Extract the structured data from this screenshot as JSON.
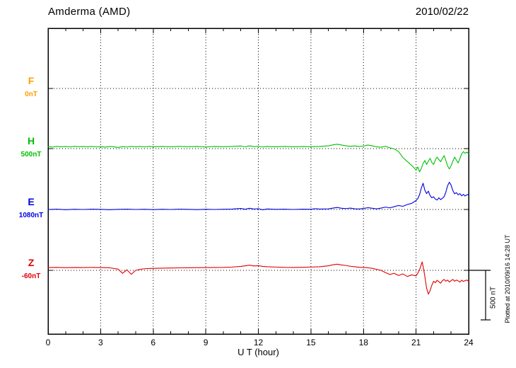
{
  "chart_data": {
    "type": "line",
    "title": "Amderma (AMD)",
    "date": "2010/02/22",
    "xlabel": "U T (hour)",
    "x_unit": "hour",
    "x_range": [
      0,
      24
    ],
    "x_ticks": [
      0,
      3,
      6,
      9,
      12,
      15,
      18,
      21,
      24
    ],
    "x_minor_tick_step_hours": 1,
    "grid": "dotted vertical lines every 3 hours; dotted horizontal line at each component baseline",
    "legend_position": "left margin (component letter above its baseline value)",
    "unit": "nT",
    "scale_bar": {
      "label": "500 nT",
      "nT": 500
    },
    "footnote": "Plotted at 2010/09/16 14:28 UT",
    "series": [
      {
        "name": "F",
        "baseline_label": "0nT",
        "color": "#FFA000",
        "points": []
      },
      {
        "name": "H",
        "baseline_label": "500nT",
        "color": "#00C000",
        "points": [
          [
            0,
            20
          ],
          [
            0.25,
            16
          ],
          [
            0.5,
            22
          ],
          [
            0.75,
            18
          ],
          [
            1,
            21
          ],
          [
            1.25,
            17
          ],
          [
            1.5,
            23
          ],
          [
            1.75,
            19
          ],
          [
            2,
            21
          ],
          [
            2.25,
            18
          ],
          [
            2.5,
            22
          ],
          [
            2.75,
            17
          ],
          [
            3,
            20
          ],
          [
            3.25,
            15
          ],
          [
            3.5,
            21
          ],
          [
            3.75,
            18
          ],
          [
            4,
            12
          ],
          [
            4.25,
            20
          ],
          [
            4.5,
            16
          ],
          [
            4.75,
            22
          ],
          [
            5,
            18
          ],
          [
            5.25,
            21
          ],
          [
            5.5,
            17
          ],
          [
            5.75,
            22
          ],
          [
            6,
            19
          ],
          [
            6.5,
            21
          ],
          [
            7,
            18
          ],
          [
            7.5,
            22
          ],
          [
            8,
            19
          ],
          [
            8.5,
            21
          ],
          [
            9,
            17
          ],
          [
            9.5,
            21
          ],
          [
            10,
            19
          ],
          [
            10.5,
            22
          ],
          [
            11,
            26
          ],
          [
            11.25,
            18
          ],
          [
            11.5,
            28
          ],
          [
            11.75,
            20
          ],
          [
            12,
            24
          ],
          [
            12.25,
            17
          ],
          [
            12.5,
            21
          ],
          [
            13,
            18
          ],
          [
            13.5,
            22
          ],
          [
            14,
            18
          ],
          [
            14.5,
            21
          ],
          [
            15,
            19
          ],
          [
            15.5,
            22
          ],
          [
            16,
            28
          ],
          [
            16.25,
            38
          ],
          [
            16.5,
            44
          ],
          [
            16.75,
            36
          ],
          [
            17,
            28
          ],
          [
            17.25,
            24
          ],
          [
            17.5,
            27
          ],
          [
            17.75,
            21
          ],
          [
            18,
            26
          ],
          [
            18.25,
            36
          ],
          [
            18.5,
            28
          ],
          [
            18.75,
            18
          ],
          [
            19,
            14
          ],
          [
            19.25,
            24
          ],
          [
            19.5,
            8
          ],
          [
            19.75,
            -2
          ],
          [
            20,
            -30
          ],
          [
            20.25,
            -90
          ],
          [
            20.5,
            -130
          ],
          [
            20.75,
            -170
          ],
          [
            21,
            -215
          ],
          [
            21.1,
            -185
          ],
          [
            21.2,
            -235
          ],
          [
            21.3,
            -200
          ],
          [
            21.4,
            -150
          ],
          [
            21.5,
            -120
          ],
          [
            21.6,
            -160
          ],
          [
            21.7,
            -128
          ],
          [
            21.8,
            -98
          ],
          [
            21.9,
            -140
          ],
          [
            22,
            -160
          ],
          [
            22.1,
            -115
          ],
          [
            22.2,
            -85
          ],
          [
            22.3,
            -110
          ],
          [
            22.4,
            -132
          ],
          [
            22.5,
            -100
          ],
          [
            22.6,
            -70
          ],
          [
            22.7,
            -120
          ],
          [
            22.8,
            -175
          ],
          [
            22.9,
            -205
          ],
          [
            23,
            -172
          ],
          [
            23.1,
            -128
          ],
          [
            23.2,
            -85
          ],
          [
            23.3,
            -115
          ],
          [
            23.4,
            -145
          ],
          [
            23.5,
            -100
          ],
          [
            23.6,
            -55
          ],
          [
            23.7,
            -30
          ],
          [
            23.8,
            -48
          ],
          [
            23.9,
            -35
          ],
          [
            24,
            -52
          ]
        ]
      },
      {
        "name": "E",
        "baseline_label": "1080nT",
        "color": "#0000E0",
        "points": [
          [
            0,
            0
          ],
          [
            0.5,
            3
          ],
          [
            1,
            -2
          ],
          [
            1.5,
            2
          ],
          [
            2,
            0
          ],
          [
            2.5,
            3
          ],
          [
            3,
            1
          ],
          [
            3.5,
            -2
          ],
          [
            4,
            1
          ],
          [
            4.5,
            3
          ],
          [
            5,
            0
          ],
          [
            5.5,
            2
          ],
          [
            6,
            -1
          ],
          [
            6.5,
            2
          ],
          [
            7,
            0
          ],
          [
            7.5,
            3
          ],
          [
            8,
            1
          ],
          [
            8.5,
            -1
          ],
          [
            9,
            2
          ],
          [
            9.5,
            0
          ],
          [
            10,
            2
          ],
          [
            10.5,
            4
          ],
          [
            11,
            10
          ],
          [
            11.25,
            2
          ],
          [
            11.5,
            12
          ],
          [
            11.75,
            4
          ],
          [
            12,
            8
          ],
          [
            12.25,
            -3
          ],
          [
            12.5,
            5
          ],
          [
            13,
            1
          ],
          [
            13.5,
            3
          ],
          [
            14,
            0
          ],
          [
            14.5,
            3
          ],
          [
            15,
            2
          ],
          [
            15.25,
            8
          ],
          [
            15.5,
            4
          ],
          [
            16,
            6
          ],
          [
            16.25,
            14
          ],
          [
            16.5,
            20
          ],
          [
            16.75,
            12
          ],
          [
            17,
            9
          ],
          [
            17.25,
            14
          ],
          [
            17.5,
            7
          ],
          [
            17.75,
            5
          ],
          [
            18,
            10
          ],
          [
            18.25,
            18
          ],
          [
            18.5,
            12
          ],
          [
            18.75,
            6
          ],
          [
            19,
            14
          ],
          [
            19.25,
            24
          ],
          [
            19.5,
            16
          ],
          [
            19.75,
            28
          ],
          [
            20,
            40
          ],
          [
            20.25,
            32
          ],
          [
            20.5,
            50
          ],
          [
            20.75,
            62
          ],
          [
            21,
            90
          ],
          [
            21.1,
            110
          ],
          [
            21.2,
            150
          ],
          [
            21.3,
            215
          ],
          [
            21.4,
            265
          ],
          [
            21.5,
            195
          ],
          [
            21.6,
            160
          ],
          [
            21.7,
            185
          ],
          [
            21.8,
            140
          ],
          [
            21.9,
            118
          ],
          [
            22,
            128
          ],
          [
            22.1,
            105
          ],
          [
            22.2,
            95
          ],
          [
            22.3,
            118
          ],
          [
            22.4,
            100
          ],
          [
            22.5,
            112
          ],
          [
            22.6,
            130
          ],
          [
            22.7,
            175
          ],
          [
            22.8,
            240
          ],
          [
            22.9,
            275
          ],
          [
            23,
            245
          ],
          [
            23.1,
            190
          ],
          [
            23.2,
            158
          ],
          [
            23.3,
            170
          ],
          [
            23.4,
            148
          ],
          [
            23.5,
            160
          ],
          [
            23.6,
            138
          ],
          [
            23.7,
            152
          ],
          [
            23.8,
            136
          ],
          [
            23.9,
            148
          ],
          [
            24,
            152
          ]
        ]
      },
      {
        "name": "Z",
        "baseline_label": "-60nT",
        "color": "#E00000",
        "points": [
          [
            0,
            28
          ],
          [
            0.5,
            30
          ],
          [
            1,
            27
          ],
          [
            1.5,
            29
          ],
          [
            2,
            28
          ],
          [
            2.5,
            30
          ],
          [
            3,
            28
          ],
          [
            3.5,
            26
          ],
          [
            4,
            12
          ],
          [
            4.25,
            -30
          ],
          [
            4.5,
            5
          ],
          [
            4.75,
            -40
          ],
          [
            5,
            0
          ],
          [
            5.25,
            10
          ],
          [
            5.5,
            16
          ],
          [
            6,
            20
          ],
          [
            6.5,
            22
          ],
          [
            7,
            24
          ],
          [
            7.5,
            25
          ],
          [
            8,
            26
          ],
          [
            8.5,
            27
          ],
          [
            9,
            28
          ],
          [
            9.5,
            29
          ],
          [
            10,
            30
          ],
          [
            10.5,
            33
          ],
          [
            11,
            40
          ],
          [
            11.25,
            46
          ],
          [
            11.5,
            52
          ],
          [
            11.75,
            44
          ],
          [
            12,
            47
          ],
          [
            12.25,
            40
          ],
          [
            12.5,
            36
          ],
          [
            13,
            33
          ],
          [
            13.5,
            30
          ],
          [
            14,
            29
          ],
          [
            14.5,
            31
          ],
          [
            15,
            33
          ],
          [
            15.5,
            36
          ],
          [
            16,
            46
          ],
          [
            16.25,
            56
          ],
          [
            16.5,
            62
          ],
          [
            16.75,
            54
          ],
          [
            17,
            49
          ],
          [
            17.25,
            41
          ],
          [
            17.5,
            36
          ],
          [
            17.75,
            31
          ],
          [
            18,
            29
          ],
          [
            18.25,
            26
          ],
          [
            18.5,
            20
          ],
          [
            18.75,
            10
          ],
          [
            19,
            0
          ],
          [
            19.25,
            -22
          ],
          [
            19.5,
            -42
          ],
          [
            19.75,
            -30
          ],
          [
            20,
            -52
          ],
          [
            20.25,
            -36
          ],
          [
            20.5,
            -62
          ],
          [
            20.75,
            -46
          ],
          [
            21,
            -56
          ],
          [
            21.1,
            -28
          ],
          [
            21.2,
            5
          ],
          [
            21.3,
            60
          ],
          [
            21.35,
            85
          ],
          [
            21.4,
            40
          ],
          [
            21.5,
            -60
          ],
          [
            21.6,
            -180
          ],
          [
            21.7,
            -240
          ],
          [
            21.8,
            -205
          ],
          [
            21.9,
            -150
          ],
          [
            22,
            -110
          ],
          [
            22.1,
            -125
          ],
          [
            22.2,
            -100
          ],
          [
            22.3,
            -115
          ],
          [
            22.4,
            -130
          ],
          [
            22.5,
            -105
          ],
          [
            22.6,
            -92
          ],
          [
            22.7,
            -110
          ],
          [
            22.8,
            -98
          ],
          [
            22.9,
            -118
          ],
          [
            23,
            -104
          ],
          [
            23.1,
            -92
          ],
          [
            23.2,
            -110
          ],
          [
            23.3,
            -98
          ],
          [
            23.4,
            -106
          ],
          [
            23.5,
            -118
          ],
          [
            23.6,
            -100
          ],
          [
            23.7,
            -112
          ],
          [
            23.8,
            -104
          ],
          [
            23.9,
            -98
          ],
          [
            24,
            -110
          ]
        ]
      }
    ]
  }
}
